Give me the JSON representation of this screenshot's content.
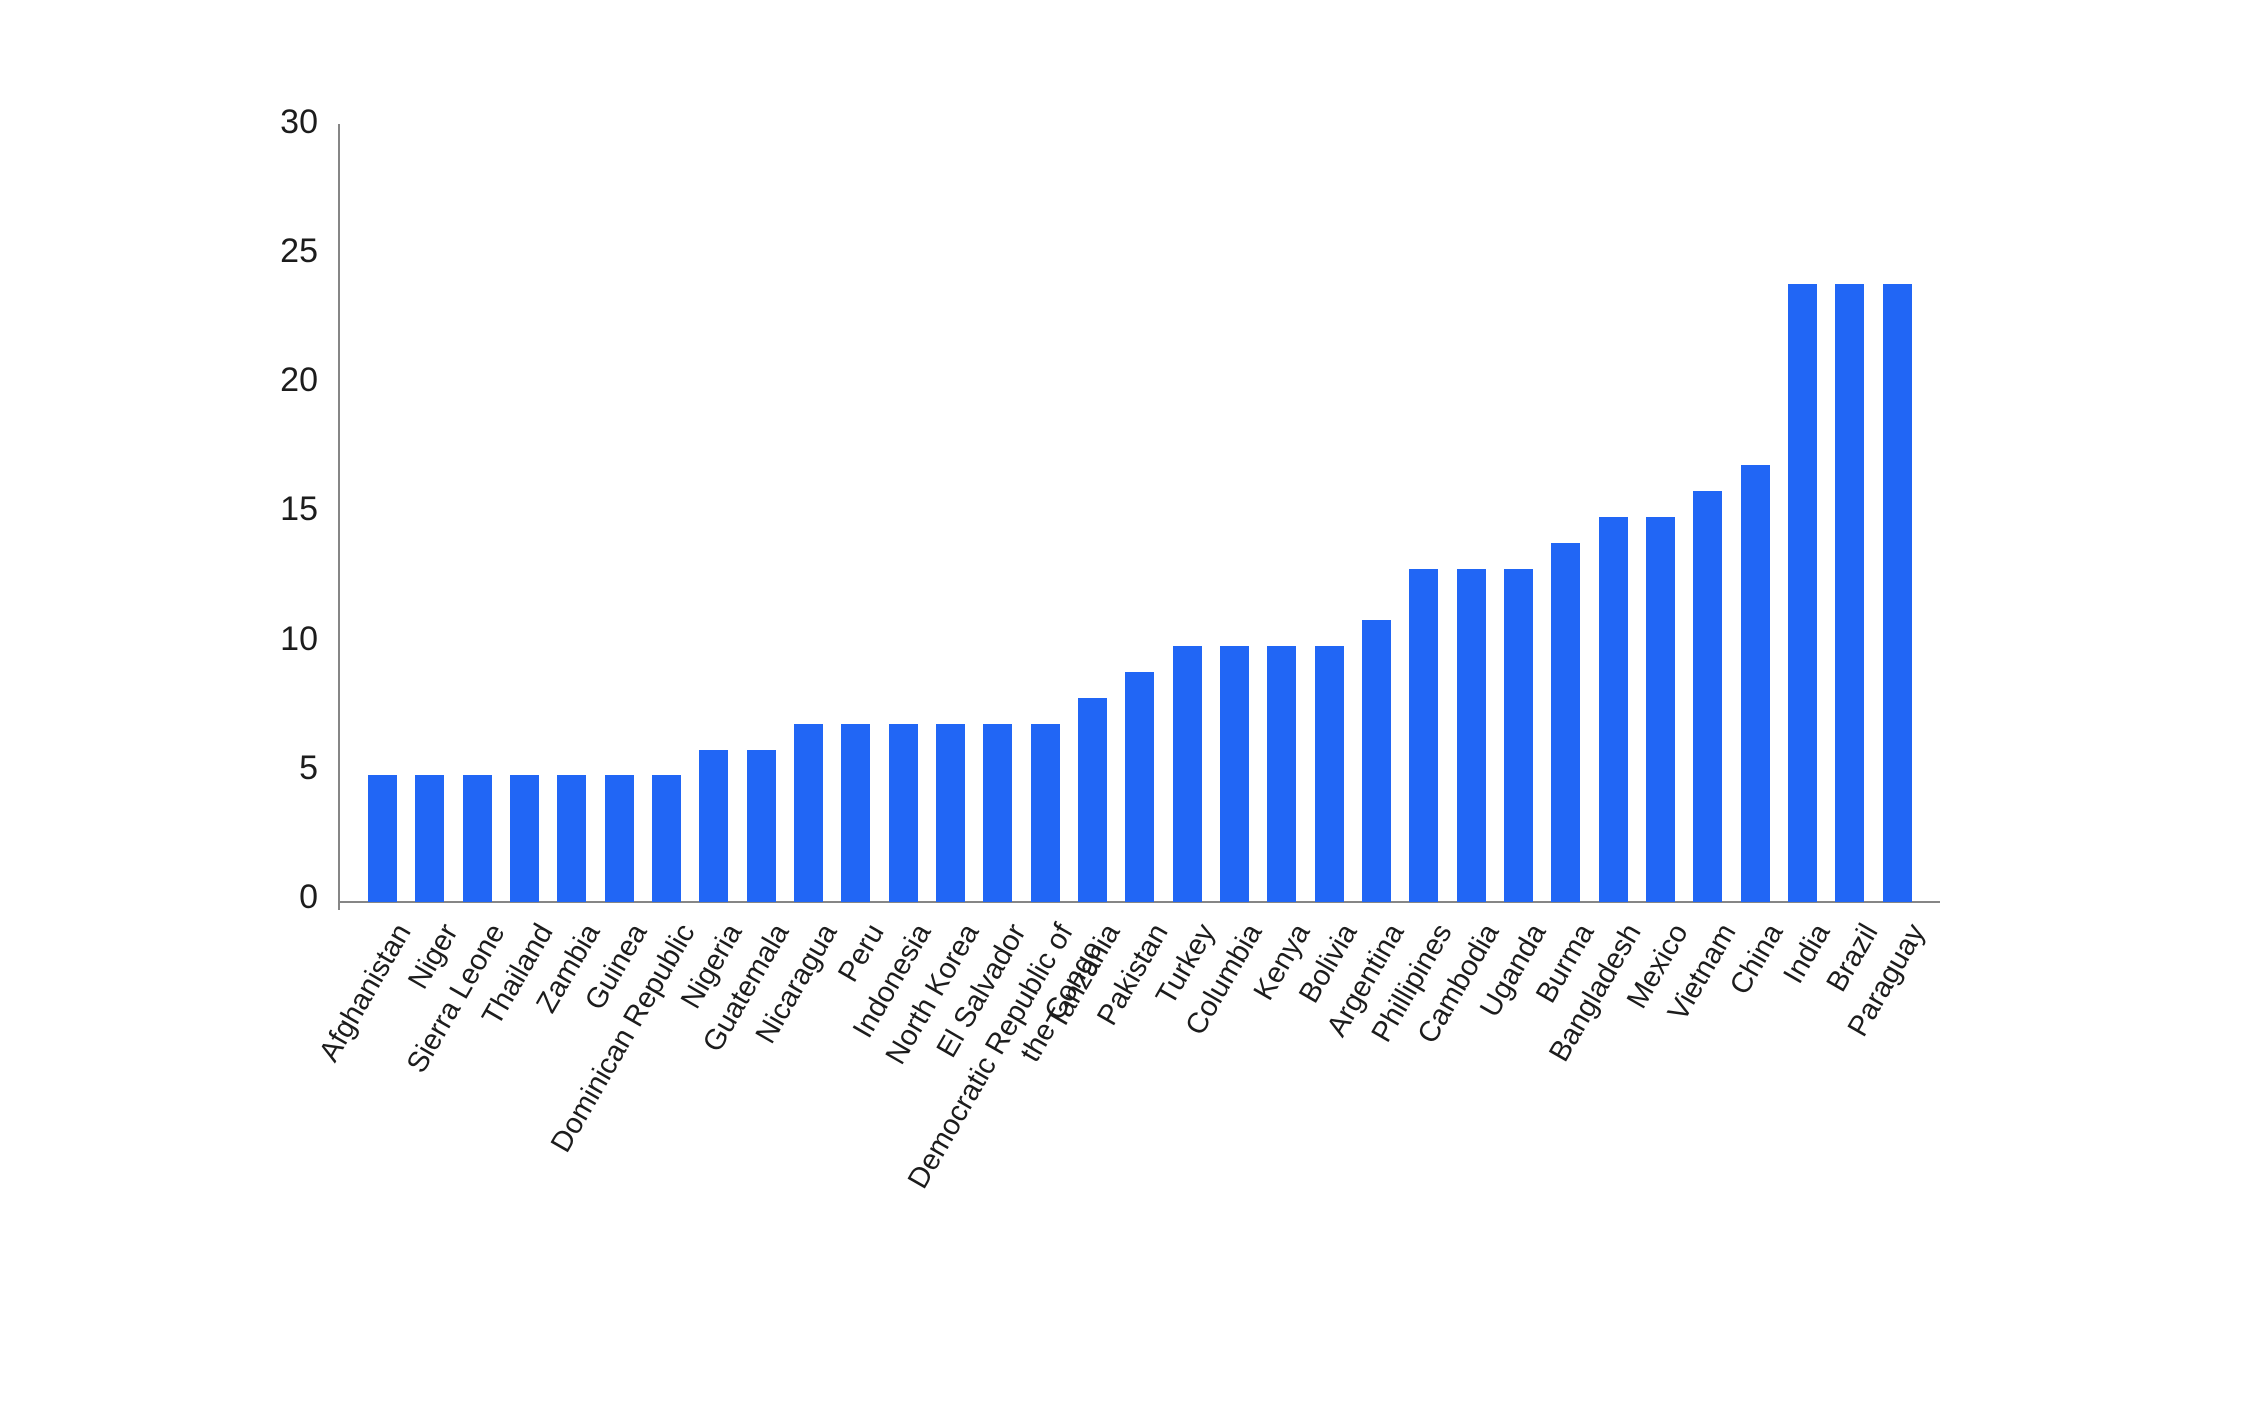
{
  "chart_data": {
    "type": "bar",
    "title": "",
    "xlabel": "",
    "ylabel": "",
    "ylim": [
      0,
      30
    ],
    "yticks": [
      0,
      5,
      10,
      15,
      20,
      25,
      30
    ],
    "grid": false,
    "legend": "none",
    "bar_color": "#2166f5",
    "axis_color": "#868686",
    "tick_text_color": "#1c1c1c",
    "categories": [
      "Afghanistan",
      "Niger",
      "Sierra Leone",
      "Thailand",
      "Zambia",
      "Guinea",
      "Dominican Republic",
      "Nigeria",
      "Guatemala",
      "Nicaragua",
      "Peru",
      "Indonesia",
      "North Korea",
      "El Salvador",
      "Democratic Republic of\nthe Congo",
      "Tanzania",
      "Pakistan",
      "Turkey",
      "Columbia",
      "Kenya",
      "Bolivia",
      "Argentina",
      "Phillipines",
      "Cambodia",
      "Uganda",
      "Burma",
      "Bangladesh",
      "Mexico",
      "Vietnam",
      "China",
      "India",
      "Brazil",
      "Paraguay"
    ],
    "values": [
      4.9,
      4.9,
      4.9,
      4.9,
      4.9,
      4.9,
      4.9,
      5.9,
      5.9,
      6.9,
      6.9,
      6.9,
      6.9,
      6.9,
      6.9,
      7.9,
      8.9,
      9.9,
      9.9,
      9.9,
      9.9,
      10.9,
      12.9,
      12.9,
      12.9,
      13.9,
      14.9,
      14.9,
      15.9,
      16.9,
      23.9,
      23.9,
      23.9
    ]
  }
}
